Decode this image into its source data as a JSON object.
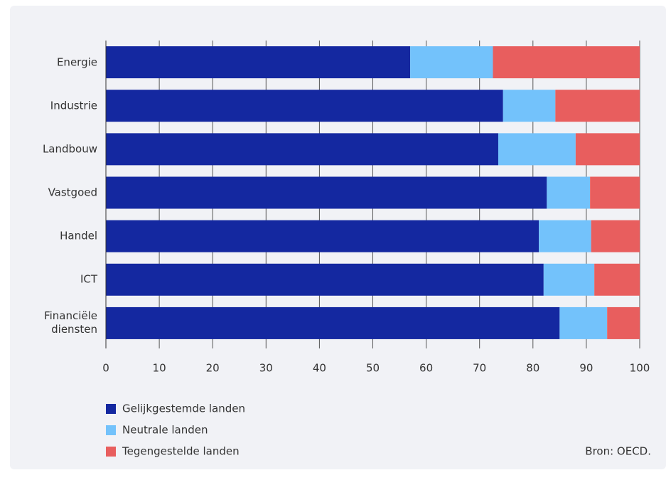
{
  "chart_data": {
    "type": "stacked-bar-horizontal",
    "categories": [
      "Energie",
      "Industrie",
      "Landbouw",
      "Vastgoed",
      "Handel",
      "ICT",
      "Financiële diensten"
    ],
    "series": [
      {
        "name": "Gelijkgestemde landen",
        "color": "#1428a0",
        "values": [
          57,
          74.4,
          73.5,
          82.6,
          81.1,
          82,
          85
        ]
      },
      {
        "name": "Neutrale landen",
        "color": "#73c2fb",
        "values": [
          15.5,
          9.8,
          14.5,
          8.1,
          9.8,
          9.5,
          8.9
        ]
      },
      {
        "name": "Tegengestelde landen",
        "color": "#e85e5e",
        "values": [
          27.5,
          15.8,
          12,
          9.3,
          9.1,
          8.5,
          6.1
        ]
      }
    ],
    "xlim": [
      0,
      100
    ],
    "xticks": [
      0,
      10,
      20,
      30,
      40,
      50,
      60,
      70,
      80,
      90,
      100
    ],
    "grid": true,
    "source": "Bron: OECD."
  }
}
